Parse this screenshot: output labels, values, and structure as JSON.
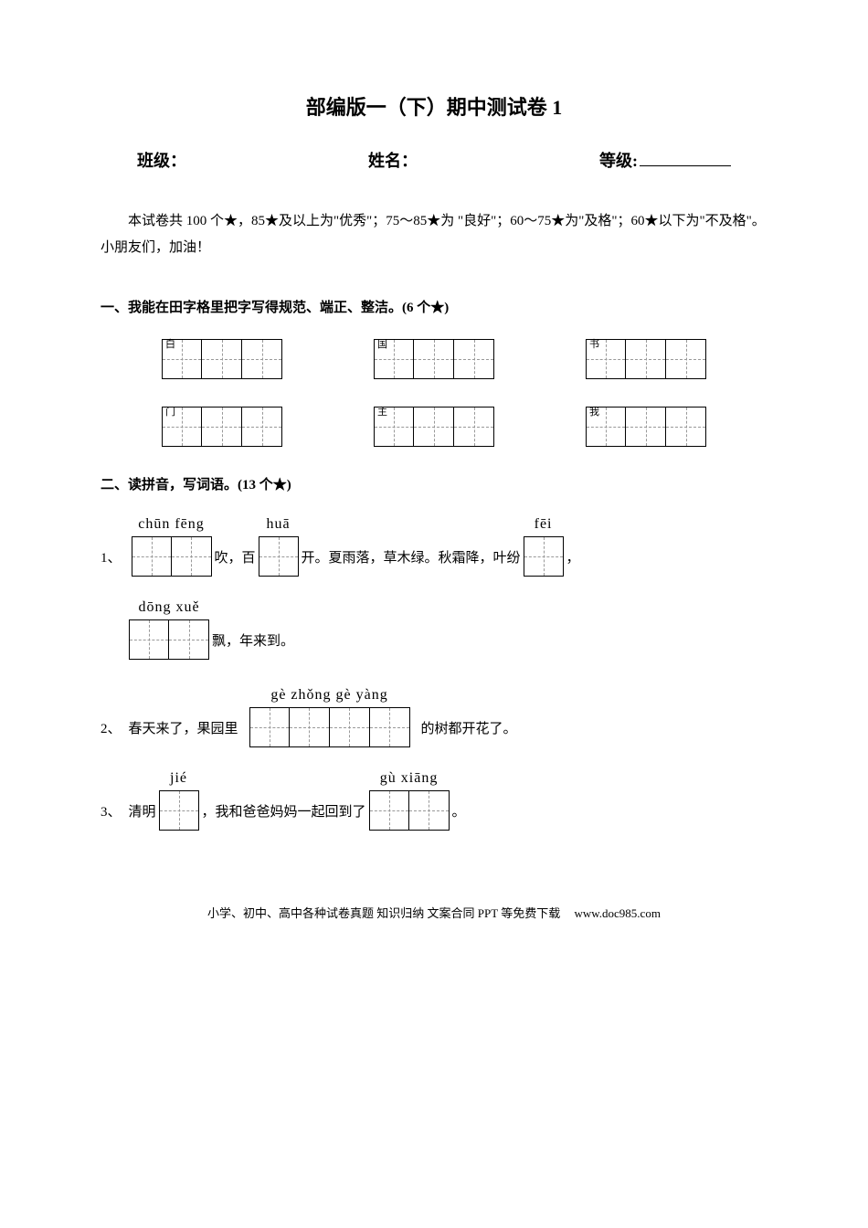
{
  "title": "部编版一（下）期中测试卷 1",
  "header": {
    "class_label": "班级：",
    "name_label": "姓名：",
    "grade_label": "等级:"
  },
  "intro": "本试卷共 100 个★，85★及以上为\"优秀\"；75～85★为 \"良好\"；60～75★为\"及格\"；60★以下为\"不及格\"。小朋友们，加油！",
  "section1": {
    "title": "一、我能在田字格里把字写得规范、端正、整洁。(6  个★)",
    "chars_row1": [
      "白",
      "国",
      "书"
    ],
    "chars_row2": [
      "门",
      "主",
      "我"
    ],
    "cells_per_box": 3
  },
  "section2": {
    "title": "二、读拼音，写词语。(13 个★)",
    "q1": {
      "num": "1、",
      "pinyin1": "chūn fēng",
      "text1": "吹，百",
      "pinyin2": "huā",
      "text2": "开。夏雨落，草木绿。秋霜降，叶纷",
      "pinyin3": "fēi",
      "text3": "，",
      "pinyin4": "dōng xuě",
      "text4": "飘，年来到。"
    },
    "q2": {
      "num": "2、",
      "text1": "春天来了，果园里",
      "pinyin": "gè  zhǒng  gè  yàng",
      "text2": "的树都开花了。"
    },
    "q3": {
      "num": "3、",
      "text1": "清明",
      "pinyin1": "jié",
      "text2": "，我和爸爸妈妈一起回到了",
      "pinyin2": "gù  xiāng",
      "text3": "。"
    }
  },
  "footer": {
    "text": "小学、初中、高中各种试卷真题 知识归纳 文案合同 PPT 等免费下载",
    "url": "www.doc985.com"
  },
  "colors": {
    "background": "#ffffff",
    "text": "#000000",
    "dashed": "#999999"
  }
}
